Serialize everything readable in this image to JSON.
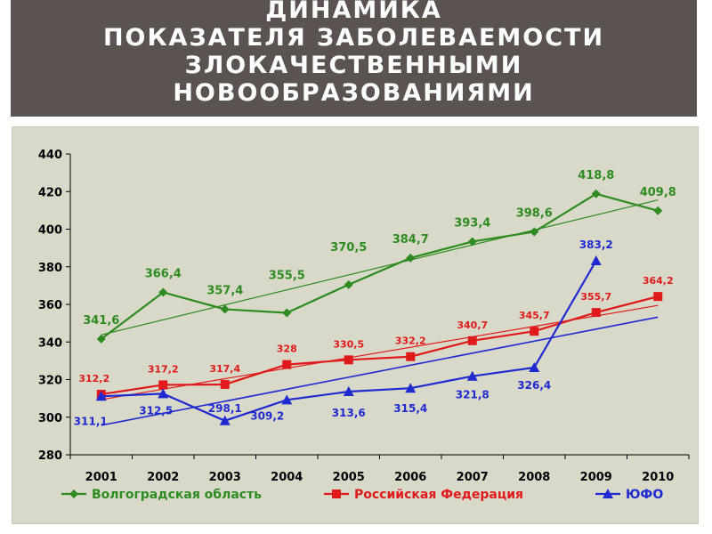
{
  "slide": {
    "title": "ДИНАМИКА\nПОКАЗАТЕЛЯ ЗАБОЛЕВАЕМОСТИ\nЗЛОКАЧЕСТВЕННЫМИ\nНОВООБРАЗОВАНИЯМИ"
  },
  "colors": {
    "volgograd": "#2e8b22",
    "russia": "#e01a1a",
    "yufo": "#1f2bd0",
    "chart_bg": "#d9d9c9",
    "title_bg": "#5a5350"
  },
  "chart_data": {
    "type": "line",
    "categories": [
      "2001",
      "2002",
      "2003",
      "2004",
      "2005",
      "2006",
      "2007",
      "2008",
      "2009",
      "2010"
    ],
    "ylim": [
      280,
      440
    ],
    "yticks": [
      "280",
      "300",
      "320",
      "340",
      "360",
      "380",
      "400",
      "420",
      "440"
    ],
    "grid": false,
    "legend_position": "bottom",
    "series": [
      {
        "name": "Волгоградская область",
        "marker": "diamond",
        "color": "#2e8b22",
        "values": [
          341.6,
          366.4,
          357.4,
          355.5,
          370.5,
          384.7,
          393.4,
          398.6,
          418.8,
          409.8
        ],
        "labels": [
          "341,6",
          "366,4",
          "357,4",
          "355,5",
          "370,5",
          "384,7",
          "393,4",
          "398,6",
          "418,8",
          "409,8"
        ],
        "trendline": true
      },
      {
        "name": "Российская Федерация",
        "marker": "square",
        "color": "#e01a1a",
        "values": [
          312.2,
          317.2,
          317.4,
          328,
          330.5,
          332.2,
          340.7,
          345.7,
          355.7,
          364.2
        ],
        "labels": [
          "312,2",
          "317,2",
          "317,4",
          "328",
          "330,5",
          "332,2",
          "340,7",
          "345,7",
          "355,7",
          "364,2"
        ],
        "trendline": true
      },
      {
        "name": "ЮФО",
        "marker": "triangle",
        "color": "#1f2bd0",
        "values": [
          311.1,
          312.5,
          298.1,
          309.2,
          313.6,
          315.4,
          321.8,
          326.4,
          383.2,
          null
        ],
        "labels": [
          "311,1",
          "312,5",
          "298,1",
          "309,2",
          "313,6",
          "315,4",
          "321,8",
          "326,4",
          "383,2",
          ""
        ],
        "trendline": true
      }
    ]
  }
}
